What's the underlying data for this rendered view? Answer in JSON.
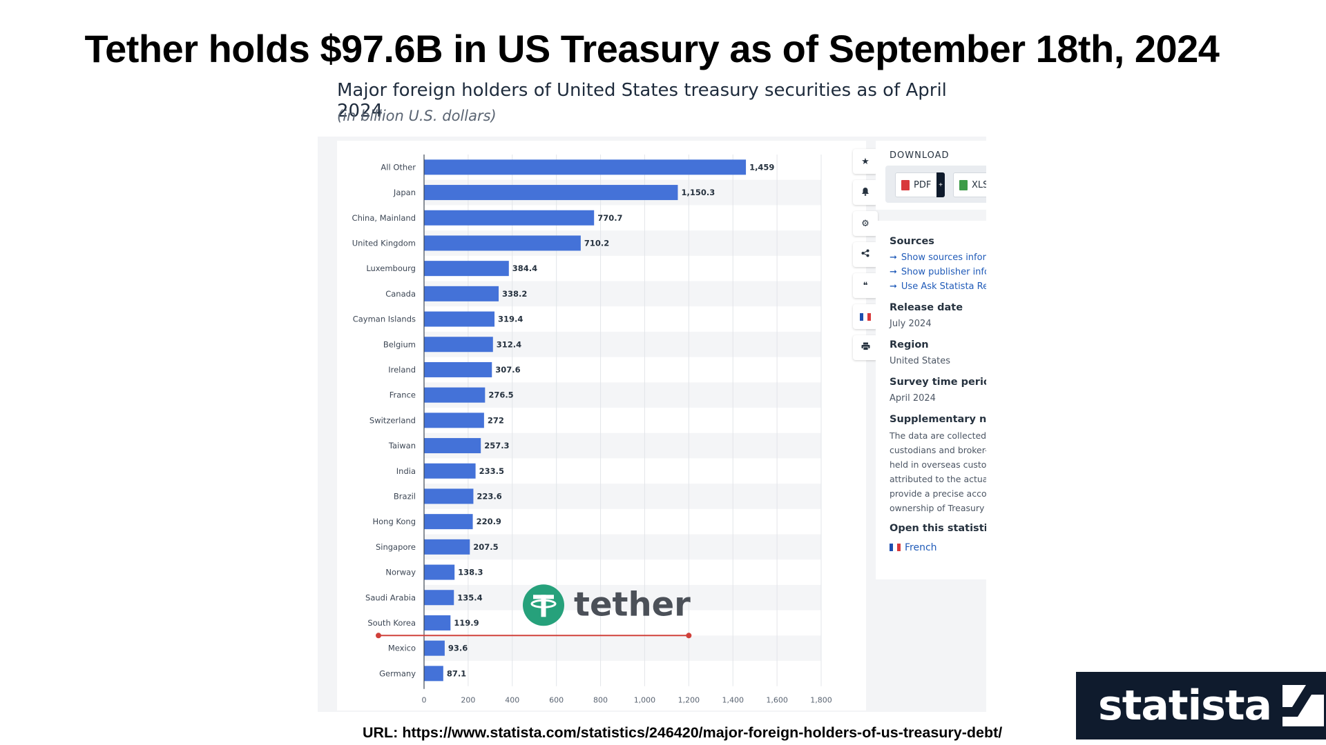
{
  "headline": "Tether holds $97.6B in US Treasury as of September 18th, 2024",
  "url_line": "URL: https://www.statista.com/statistics/246420/major-foreign-holders-of-us-treasury-debt/",
  "chart_data": {
    "type": "bar",
    "orientation": "horizontal",
    "title": "Major foreign holders of United States treasury securities as of April 2024",
    "subtitle": "(in billion U.S. dollars)",
    "categories": [
      "All Other",
      "Japan",
      "China, Mainland",
      "United Kingdom",
      "Luxembourg",
      "Canada",
      "Cayman Islands",
      "Belgium",
      "Ireland",
      "France",
      "Switzerland",
      "Taiwan",
      "India",
      "Brazil",
      "Hong Kong",
      "Singapore",
      "Norway",
      "Saudi Arabia",
      "South Korea",
      "Mexico",
      "Germany"
    ],
    "values": [
      1459,
      1150.3,
      770.7,
      710.2,
      384.4,
      338.2,
      319.4,
      312.4,
      307.6,
      276.5,
      272,
      257.3,
      233.5,
      223.6,
      220.9,
      207.5,
      138.3,
      135.4,
      119.9,
      93.6,
      87.1
    ],
    "value_labels": [
      "1,459",
      "1,150.3",
      "770.7",
      "710.2",
      "384.4",
      "338.2",
      "319.4",
      "312.4",
      "307.6",
      "276.5",
      "272",
      "257.3",
      "233.5",
      "223.6",
      "220.9",
      "207.5",
      "138.3",
      "135.4",
      "119.9",
      "93.6",
      "87.1"
    ],
    "xlim": [
      0,
      1800
    ],
    "xticks": [
      0,
      200,
      400,
      600,
      800,
      1000,
      1200,
      1400,
      1600,
      1800
    ],
    "xtick_labels": [
      "0",
      "200",
      "400",
      "600",
      "800",
      "1,000",
      "1,200",
      "1,400",
      "1,600",
      "1,800"
    ],
    "grid": true,
    "bar_color": "#4472d8",
    "annotation": {
      "label": "tether",
      "reference_value": 97.6,
      "line_color": "#d0403a",
      "logo_color": "#26a17b"
    }
  },
  "toolbar": {
    "icons": [
      "star-icon",
      "bell-icon",
      "gear-icon",
      "share-icon",
      "quote-icon",
      "french-flag-icon",
      "print-icon"
    ]
  },
  "download": {
    "title": "DOWNLOAD",
    "pdf_label": "PDF",
    "plus_label": "+",
    "xls_label": "XLS"
  },
  "info": {
    "sources_title": "Sources",
    "links": [
      "Show sources inforr",
      "Show publisher info",
      "Use Ask Statista Res"
    ],
    "release_title": "Release date",
    "release_value": "July 2024",
    "region_title": "Region",
    "region_value": "United States",
    "survey_title": "Survey time period",
    "survey_value": "April 2024",
    "supp_title": "Supplementary not",
    "supp_lines": [
      "The data are collected |",
      "custodians and broker-",
      "held in overseas custoc",
      "attributed to the actual",
      "provide a precise accou",
      "ownership of Treasury"
    ],
    "open_title": "Open this statistic i",
    "french_label": "French"
  },
  "logo": {
    "word": "statista"
  }
}
